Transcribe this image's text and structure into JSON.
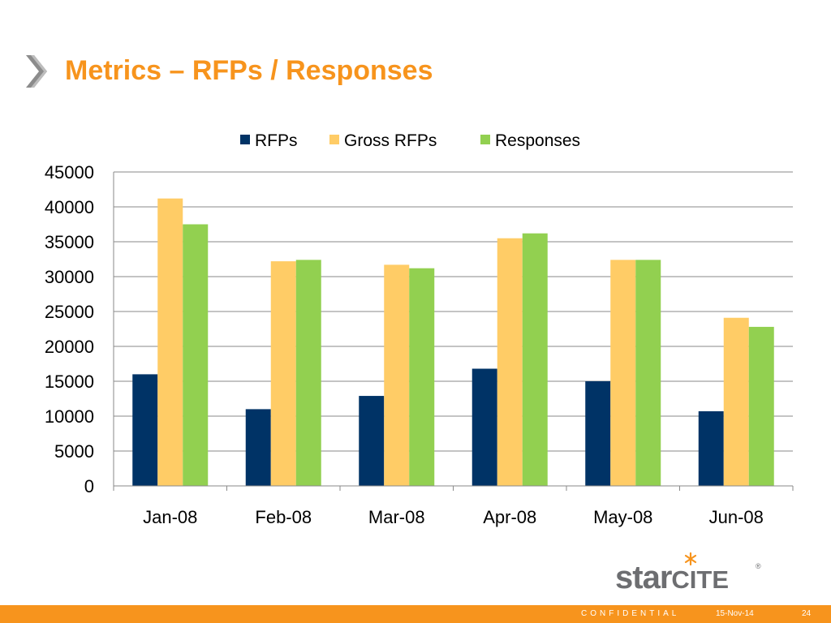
{
  "slide": {
    "title": "Metrics – RFPs / Responses",
    "footer_confidential": "CONFIDENTIAL",
    "footer_date": "15-Nov-14",
    "page_number": "24",
    "logo_text": "starCITE",
    "logo_mark": "®"
  },
  "colors": {
    "title": "#f7941d",
    "footer_bar": "#f7941d",
    "rfps": "#003366",
    "gross_rfps": "#ffcc66",
    "responses": "#92d050",
    "logo_gray": "#6d6e71"
  },
  "chart_data": {
    "type": "bar",
    "categories": [
      "Jan-08",
      "Feb-08",
      "Mar-08",
      "Apr-08",
      "May-08",
      "Jun-08"
    ],
    "series": [
      {
        "name": "RFPs",
        "color": "#003366",
        "values": [
          16000,
          11000,
          12900,
          16800,
          15000,
          10700
        ]
      },
      {
        "name": "Gross RFPs",
        "color": "#ffcc66",
        "values": [
          41200,
          32200,
          31700,
          35500,
          32400,
          24100
        ]
      },
      {
        "name": "Responses",
        "color": "#92d050",
        "values": [
          37500,
          32400,
          31200,
          36200,
          32400,
          22800
        ]
      }
    ],
    "ylim": [
      0,
      45000
    ],
    "yticks": [
      0,
      5000,
      10000,
      15000,
      20000,
      25000,
      30000,
      35000,
      40000,
      45000
    ],
    "grid": true,
    "legend_position": "top"
  }
}
